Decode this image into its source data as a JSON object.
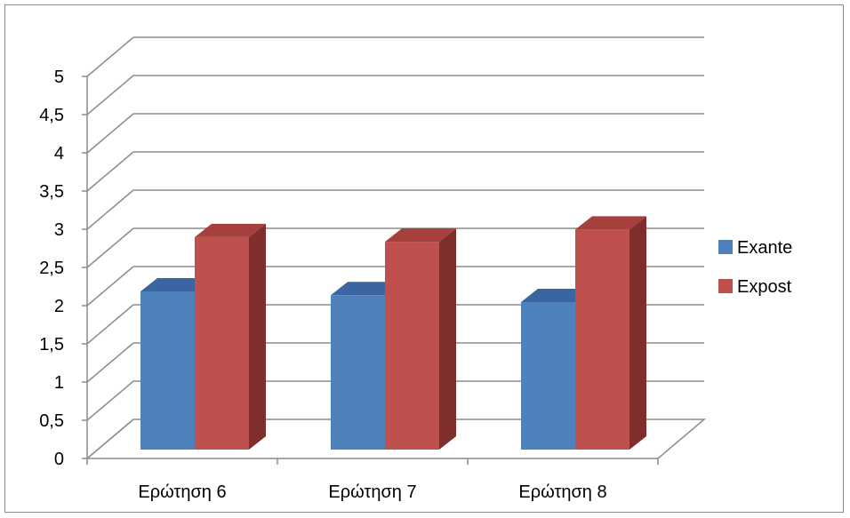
{
  "chart_data": {
    "type": "bar",
    "style": "3d-clustered-column",
    "categories": [
      "Ερώτηση 6",
      "Ερώτηση 7",
      "Ερώτηση 8"
    ],
    "series": [
      {
        "name": "Exante",
        "color": "#4f81bd",
        "side_color": "#385d8a",
        "top_color": "#3a65a0",
        "values": [
          2.07,
          2.02,
          1.93
        ]
      },
      {
        "name": "Expost",
        "color": "#c0504d",
        "side_color": "#7f2e2c",
        "top_color": "#a5403d",
        "values": [
          2.78,
          2.72,
          2.88
        ]
      }
    ],
    "ylim": [
      0,
      5
    ],
    "yticks": [
      "0",
      "0,5",
      "1",
      "1,5",
      "2",
      "2,5",
      "3",
      "3,5",
      "4",
      "4,5",
      "5"
    ],
    "grid": true,
    "legend_position": "right"
  }
}
